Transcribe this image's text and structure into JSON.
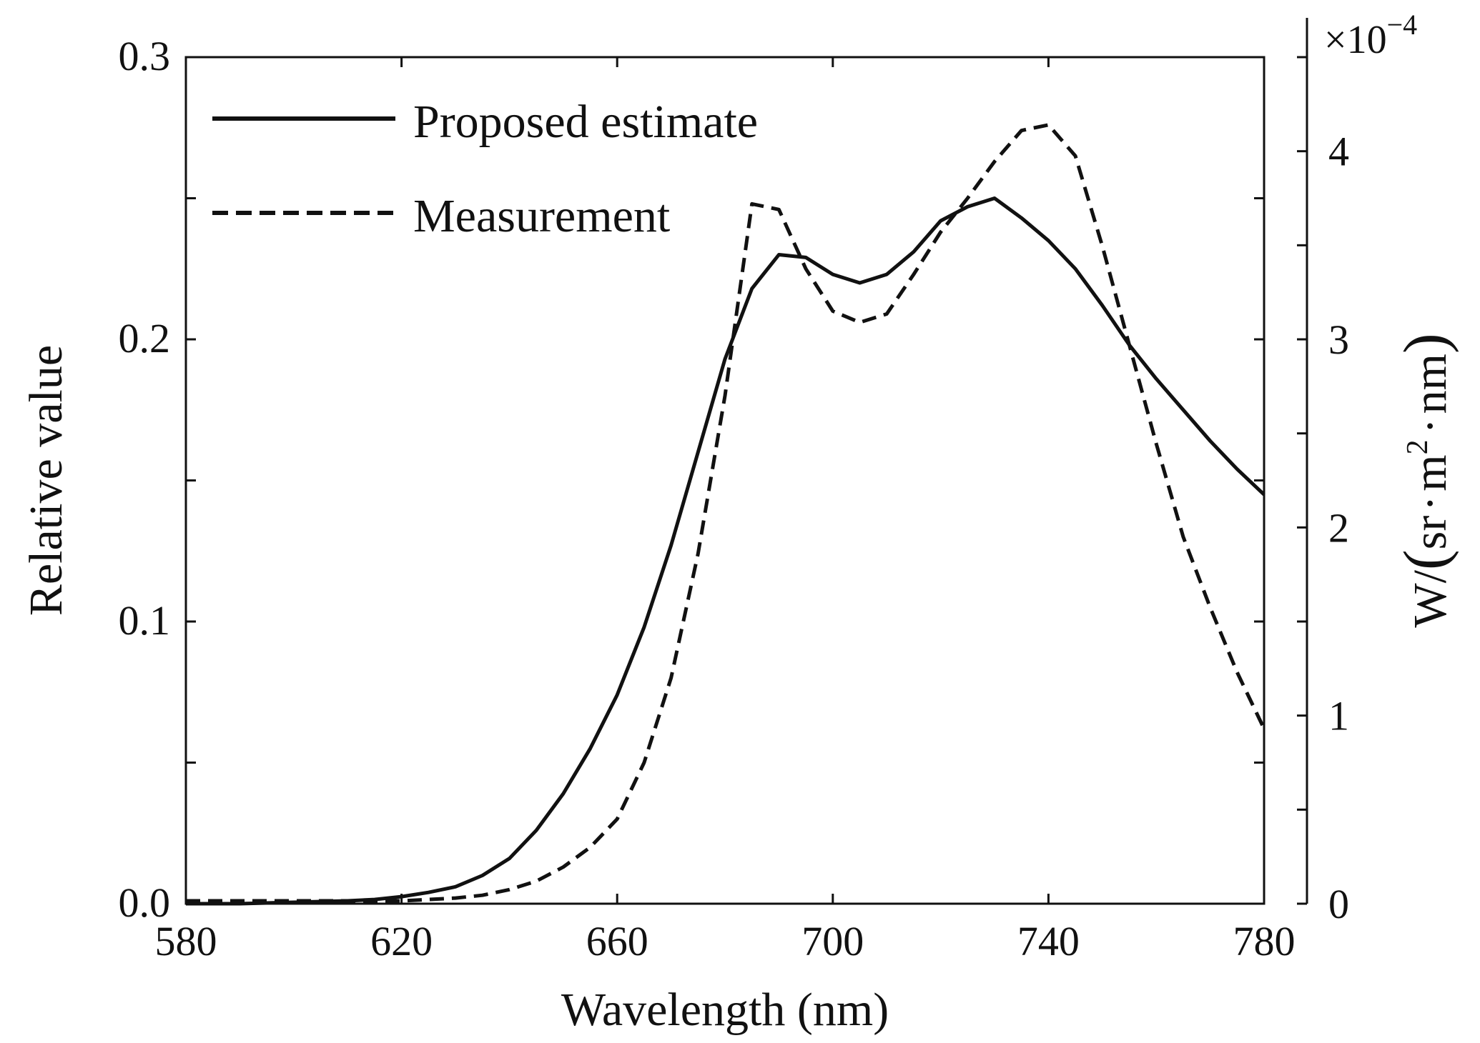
{
  "chart_data": {
    "type": "line",
    "title": "",
    "xlabel": "Wavelength (nm)",
    "ylabel": "Relative value",
    "y2label": "W/(sr·m²·nm)",
    "y2_label_parts": {
      "prefix": "W/",
      "sr": "sr",
      "dot": "·",
      "m": "m",
      "sup": "2",
      "nm": "nm"
    },
    "y2_scale": {
      "base": "×10",
      "exponent": "−4"
    },
    "xlim": [
      580,
      780
    ],
    "ylim": [
      0,
      0.3
    ],
    "y2lim": [
      0,
      4.5
    ],
    "xticks": [
      580,
      620,
      660,
      700,
      740,
      780
    ],
    "xtick_labels": [
      "580",
      "620",
      "660",
      "700",
      "740",
      "780"
    ],
    "yticks": [
      0,
      0.05,
      0.1,
      0.15,
      0.2,
      0.25,
      0.3
    ],
    "ytick_labels": [
      "0.0",
      "",
      "0.1",
      "",
      "0.2",
      "",
      "0.3"
    ],
    "y2ticks": [
      0,
      0.5,
      1,
      1.5,
      2,
      2.5,
      3,
      3.5,
      4,
      4.5
    ],
    "y2tick_labels": [
      "0",
      "",
      "1",
      "",
      "2",
      "",
      "3",
      "",
      "4",
      ""
    ],
    "grid": false,
    "legend_position": "top-left",
    "series": [
      {
        "name": "Proposed estimate",
        "style": "solid",
        "axis": "left",
        "x": [
          580,
          590,
          600,
          610,
          615,
          620,
          625,
          630,
          635,
          640,
          645,
          650,
          655,
          660,
          665,
          670,
          675,
          680,
          685,
          690,
          695,
          700,
          705,
          710,
          715,
          720,
          725,
          730,
          735,
          740,
          745,
          750,
          755,
          760,
          765,
          770,
          775,
          780
        ],
        "y": [
          0.0,
          0.0,
          0.0005,
          0.001,
          0.0015,
          0.0025,
          0.004,
          0.006,
          0.01,
          0.016,
          0.026,
          0.039,
          0.055,
          0.074,
          0.098,
          0.127,
          0.16,
          0.193,
          0.218,
          0.23,
          0.229,
          0.223,
          0.22,
          0.223,
          0.231,
          0.242,
          0.247,
          0.25,
          0.243,
          0.235,
          0.225,
          0.212,
          0.198,
          0.186,
          0.175,
          0.164,
          0.154,
          0.145
        ]
      },
      {
        "name": "Measurement",
        "style": "dashed",
        "axis": "left",
        "x": [
          580,
          600,
          620,
          625,
          630,
          635,
          640,
          645,
          650,
          655,
          660,
          665,
          670,
          675,
          680,
          685,
          690,
          695,
          700,
          705,
          710,
          715,
          720,
          725,
          730,
          735,
          740,
          745,
          750,
          755,
          760,
          765,
          770,
          775,
          780
        ],
        "y": [
          0.001,
          0.001,
          0.001,
          0.0015,
          0.002,
          0.003,
          0.005,
          0.008,
          0.013,
          0.02,
          0.03,
          0.05,
          0.08,
          0.124,
          0.18,
          0.248,
          0.246,
          0.225,
          0.21,
          0.206,
          0.209,
          0.223,
          0.238,
          0.25,
          0.263,
          0.274,
          0.276,
          0.265,
          0.233,
          0.198,
          0.163,
          0.13,
          0.105,
          0.082,
          0.062
        ]
      }
    ]
  }
}
